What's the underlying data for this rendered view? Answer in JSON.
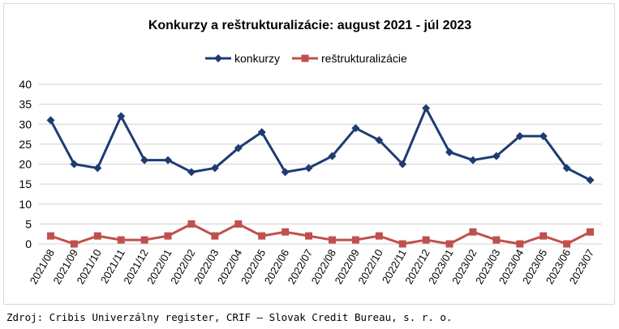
{
  "chart_data": {
    "type": "line",
    "title": "Konkurzy a reštrukturalizácie: august 2021 - júl 2023",
    "xlabel": "",
    "ylabel": "",
    "ylim": [
      0,
      40
    ],
    "yticks": [
      0,
      5,
      10,
      15,
      20,
      25,
      30,
      35,
      40
    ],
    "grid": true,
    "legend_position": "top",
    "categories": [
      "2021/08",
      "2021/09",
      "2021/10",
      "2021/11",
      "2021/12",
      "2022/01",
      "2022/02",
      "2022/03",
      "2022/04",
      "2022/05",
      "2022/06",
      "2022/07",
      "2022/08",
      "2022/09",
      "2022/10",
      "2022/11",
      "2022/12",
      "2023/01",
      "2023/02",
      "2023/03",
      "2023/04",
      "2023/05",
      "2023/06",
      "2023/07"
    ],
    "series": [
      {
        "name": "konkurzy",
        "color": "#1f3b73",
        "marker": "diamond",
        "values": [
          31,
          20,
          19,
          32,
          21,
          21,
          18,
          19,
          24,
          28,
          18,
          19,
          22,
          29,
          26,
          20,
          34,
          23,
          21,
          22,
          27,
          27,
          19,
          16
        ]
      },
      {
        "name": "reštrukturalizácie",
        "color": "#c0504d",
        "marker": "square",
        "values": [
          2,
          0,
          2,
          1,
          1,
          2,
          5,
          2,
          5,
          2,
          3,
          2,
          1,
          1,
          2,
          0,
          1,
          0,
          3,
          1,
          0,
          2,
          0,
          3
        ]
      }
    ]
  },
  "source": "Zdroj: Cribis Univerzálny register, CRIF – Slovak Credit Bureau, s. r. o."
}
